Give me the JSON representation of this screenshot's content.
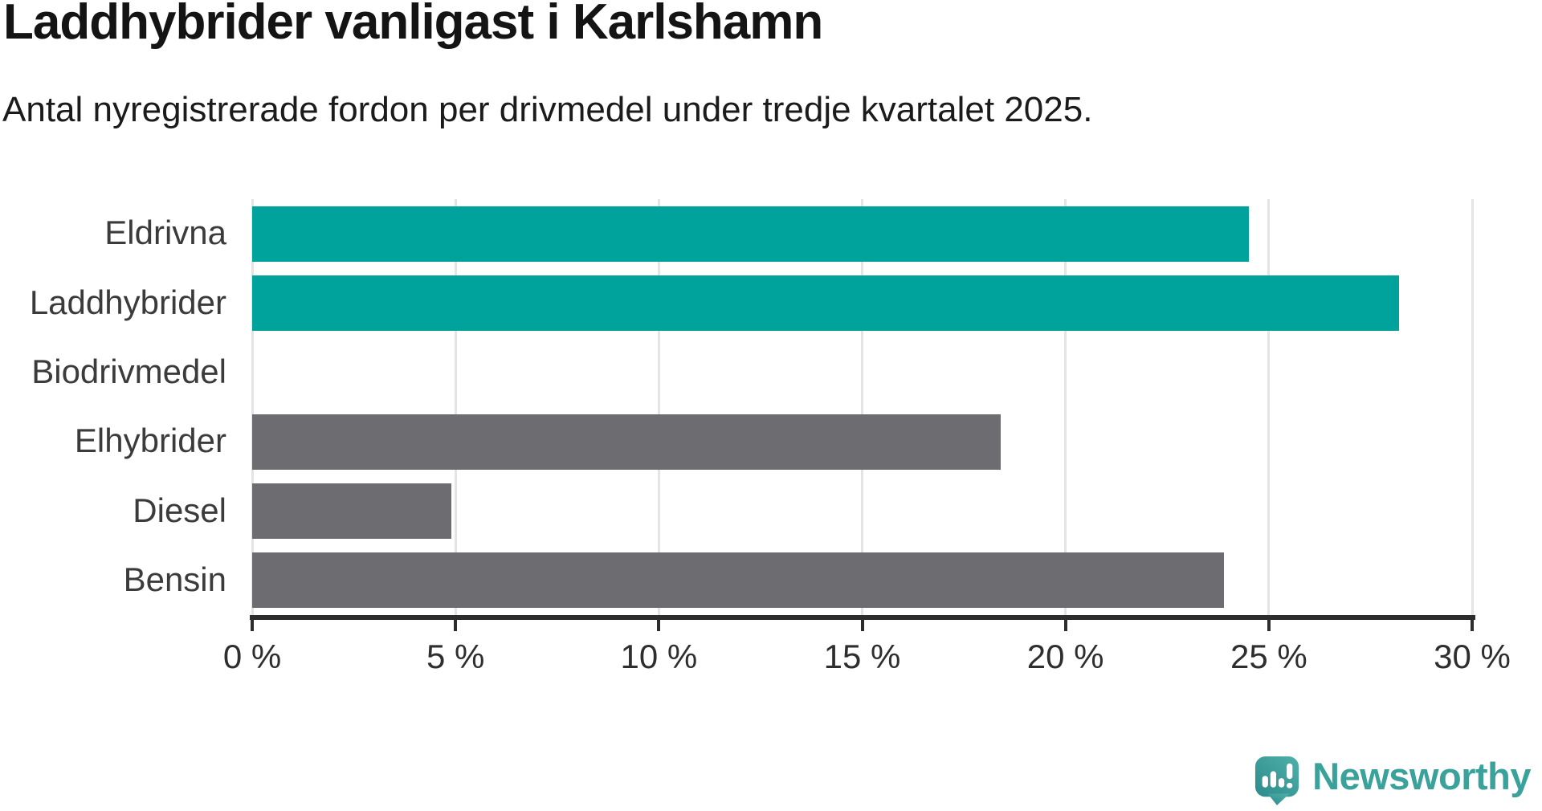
{
  "header": {
    "title": "Laddhybrider vanligast i Karlshamn",
    "subtitle": "Antal nyregistrerade fordon per drivmedel under tredje kvartalet 2025."
  },
  "chart_data": {
    "type": "bar",
    "orientation": "horizontal",
    "title": "Laddhybrider vanligast i Karlshamn",
    "subtitle": "Antal nyregistrerade fordon per drivmedel under tredje kvartalet 2025.",
    "categories": [
      "Eldrivna",
      "Laddhybrider",
      "Biodrivmedel",
      "Elhybrider",
      "Diesel",
      "Bensin"
    ],
    "values": [
      24.5,
      28.2,
      0,
      18.4,
      4.9,
      23.9
    ],
    "unit": "%",
    "bar_colors": [
      "#00a39b",
      "#00a39b",
      "#6c6c71",
      "#6c6c71",
      "#6c6c71",
      "#6c6c71"
    ],
    "highlight_color": "#00a39b",
    "default_color": "#6c6c71",
    "xlabel": "",
    "ylabel": "",
    "xlim": [
      0,
      30
    ],
    "x_ticks": [
      0,
      5,
      10,
      15,
      20,
      25,
      30
    ],
    "x_tick_labels": [
      "0 %",
      "5 %",
      "10 %",
      "15 %",
      "20 %",
      "25 %",
      "30 %"
    ],
    "grid": true,
    "legend": "none"
  },
  "footer": {
    "logo_text": "Newsworthy",
    "logo_color": "#3aa29b",
    "logo_icon": "newsworthy-speech-bubble-bar-chart-icon",
    "icon_gradient_start": "#2d8b8b",
    "icon_gradient_end": "#4fb0a9"
  }
}
